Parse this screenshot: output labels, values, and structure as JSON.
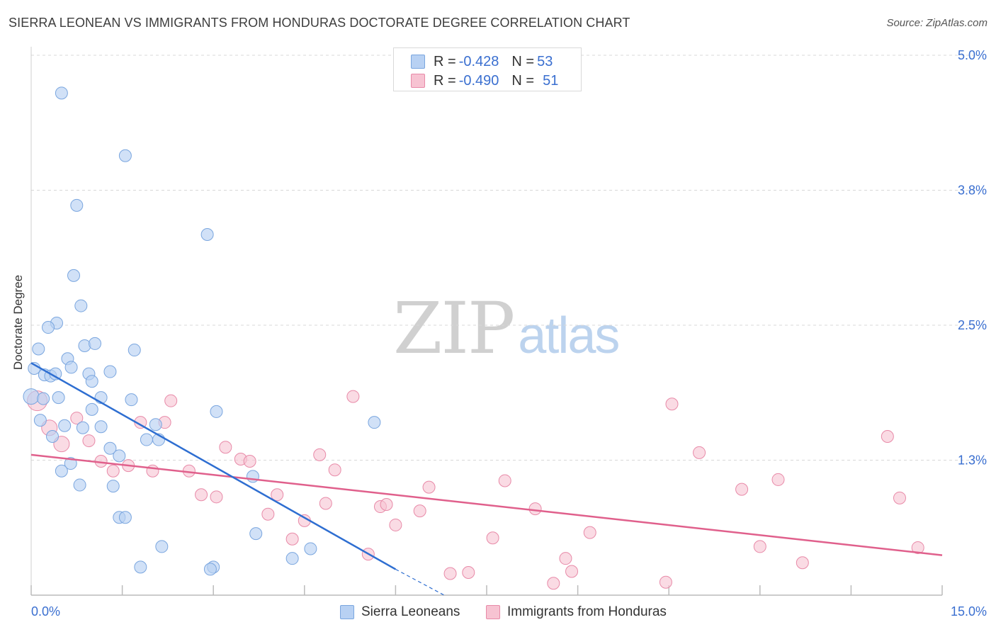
{
  "title": "SIERRA LEONEAN VS IMMIGRANTS FROM HONDURAS DOCTORATE DEGREE CORRELATION CHART",
  "source": "Source: ZipAtlas.com",
  "watermark": {
    "zip": "ZIP",
    "atlas": "atlas"
  },
  "legend": {
    "series1": {
      "r_label": "R = ",
      "r_value": "-0.428",
      "n_label": "N = ",
      "n_value": "53"
    },
    "series2": {
      "r_label": "R = ",
      "r_value": "-0.490",
      "n_label": "N = ",
      "n_value": "51"
    }
  },
  "colors": {
    "blue_fill": "#b8d1f3",
    "blue_stroke": "#7aa6df",
    "blue_line": "#2e6ed1",
    "pink_fill": "#f7c3d2",
    "pink_stroke": "#e88aa8",
    "pink_line": "#e0608c",
    "axis_text": "#3a6fd0",
    "grid": "#d8d8d8"
  },
  "chart_data": {
    "type": "scatter",
    "title": "SIERRA LEONEAN VS IMMIGRANTS FROM HONDURAS DOCTORATE DEGREE CORRELATION CHART",
    "xlabel": "",
    "ylabel": "Doctorate Degree",
    "xlim": [
      0,
      15
    ],
    "ylim": [
      0,
      5.0
    ],
    "x_tick_labels": [
      "0.0%",
      "15.0%"
    ],
    "y_ticks": [
      1.25,
      2.5,
      3.75,
      5.0
    ],
    "y_tick_labels": [
      "1.3%",
      "2.5%",
      "3.8%",
      "5.0%"
    ],
    "grid": true,
    "legend_position": "top-center",
    "series": [
      {
        "name": "Sierra Leoneans",
        "color": "#b8d1f3",
        "r": -0.428,
        "n": 53,
        "trend": {
          "x": [
            0.0,
            6.0
          ],
          "y": [
            2.15,
            0.24
          ]
        },
        "trend_dashed": {
          "x": [
            6.0,
            6.8
          ],
          "y": [
            0.24,
            0.0
          ]
        },
        "points": [
          [
            0.5,
            4.65
          ],
          [
            1.55,
            4.07
          ],
          [
            0.75,
            3.61
          ],
          [
            2.9,
            3.34
          ],
          [
            0.7,
            2.96
          ],
          [
            0.82,
            2.68
          ],
          [
            0.42,
            2.52
          ],
          [
            0.28,
            2.48
          ],
          [
            0.88,
            2.31
          ],
          [
            1.05,
            2.33
          ],
          [
            1.7,
            2.27
          ],
          [
            0.12,
            2.28
          ],
          [
            0.6,
            2.19
          ],
          [
            0.66,
            2.11
          ],
          [
            0.05,
            2.1
          ],
          [
            0.22,
            2.04
          ],
          [
            0.32,
            2.03
          ],
          [
            0.4,
            2.05
          ],
          [
            0.95,
            2.05
          ],
          [
            1.0,
            1.98
          ],
          [
            1.3,
            2.07
          ],
          [
            0.0,
            1.84
          ],
          [
            0.2,
            1.82
          ],
          [
            0.45,
            1.83
          ],
          [
            1.15,
            1.83
          ],
          [
            1.65,
            1.81
          ],
          [
            1.0,
            1.72
          ],
          [
            3.05,
            1.7
          ],
          [
            0.15,
            1.62
          ],
          [
            0.55,
            1.57
          ],
          [
            1.15,
            1.56
          ],
          [
            0.85,
            1.55
          ],
          [
            2.05,
            1.58
          ],
          [
            5.65,
            1.6
          ],
          [
            0.35,
            1.47
          ],
          [
            1.9,
            1.44
          ],
          [
            2.1,
            1.44
          ],
          [
            1.3,
            1.36
          ],
          [
            1.45,
            1.29
          ],
          [
            0.65,
            1.22
          ],
          [
            0.5,
            1.15
          ],
          [
            0.8,
            1.02
          ],
          [
            1.35,
            1.01
          ],
          [
            3.65,
            1.1
          ],
          [
            1.45,
            0.72
          ],
          [
            1.55,
            0.72
          ],
          [
            3.7,
            0.57
          ],
          [
            2.15,
            0.45
          ],
          [
            4.6,
            0.43
          ],
          [
            4.3,
            0.34
          ],
          [
            1.8,
            0.26
          ],
          [
            3.0,
            0.26
          ],
          [
            2.95,
            0.24
          ]
        ]
      },
      {
        "name": "Immigrants from Honduras",
        "color": "#f7c3d2",
        "r": -0.49,
        "n": 51,
        "trend": {
          "x": [
            0.0,
            15.0
          ],
          "y": [
            1.3,
            0.37
          ]
        },
        "points": [
          [
            0.1,
            1.8
          ],
          [
            0.3,
            1.55
          ],
          [
            0.5,
            1.4
          ],
          [
            0.75,
            1.64
          ],
          [
            0.95,
            1.43
          ],
          [
            1.15,
            1.24
          ],
          [
            1.35,
            1.15
          ],
          [
            1.6,
            1.2
          ],
          [
            1.8,
            1.6
          ],
          [
            2.0,
            1.15
          ],
          [
            2.2,
            1.6
          ],
          [
            2.3,
            1.8
          ],
          [
            2.6,
            1.15
          ],
          [
            2.8,
            0.93
          ],
          [
            3.05,
            0.91
          ],
          [
            3.2,
            1.37
          ],
          [
            3.45,
            1.26
          ],
          [
            3.6,
            1.24
          ],
          [
            3.9,
            0.75
          ],
          [
            4.05,
            0.93
          ],
          [
            4.3,
            0.52
          ],
          [
            4.5,
            0.69
          ],
          [
            4.75,
            1.3
          ],
          [
            4.85,
            0.85
          ],
          [
            5.0,
            1.16
          ],
          [
            5.3,
            1.84
          ],
          [
            5.55,
            0.38
          ],
          [
            5.75,
            0.82
          ],
          [
            5.85,
            0.84
          ],
          [
            6.0,
            0.65
          ],
          [
            6.4,
            0.78
          ],
          [
            6.55,
            1.0
          ],
          [
            6.9,
            0.2
          ],
          [
            7.2,
            0.21
          ],
          [
            7.6,
            0.53
          ],
          [
            7.8,
            1.06
          ],
          [
            8.3,
            0.8
          ],
          [
            8.6,
            0.11
          ],
          [
            8.8,
            0.34
          ],
          [
            8.9,
            0.22
          ],
          [
            9.2,
            0.58
          ],
          [
            10.45,
            0.12
          ],
          [
            10.55,
            1.77
          ],
          [
            11.0,
            1.32
          ],
          [
            11.7,
            0.98
          ],
          [
            12.0,
            0.45
          ],
          [
            12.3,
            1.07
          ],
          [
            12.7,
            0.3
          ],
          [
            14.1,
            1.47
          ],
          [
            14.3,
            0.9
          ],
          [
            14.6,
            0.44
          ]
        ]
      }
    ]
  }
}
